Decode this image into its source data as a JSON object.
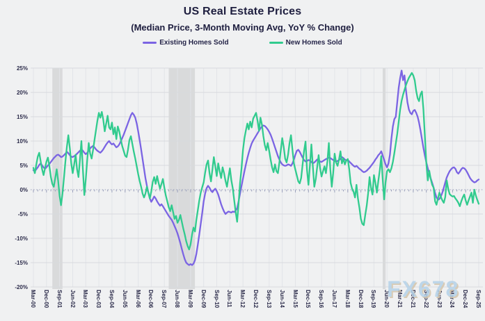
{
  "header": {
    "title": "US Real Estate Prices",
    "subtitle": "(Median Price, 3-Month Moving Avg, YoY % Change)"
  },
  "legend": {
    "items": [
      {
        "label": "Existing Homes Sold",
        "color": "#7b64e3"
      },
      {
        "label": "New Homes Sold",
        "color": "#31cb8e"
      }
    ]
  },
  "watermark": {
    "text": "FX678"
  },
  "chart_data": {
    "type": "line",
    "title": "US Real Estate Prices",
    "subtitle": "(Median Price, 3-Month Moving Avg, YoY % Change)",
    "x_start": "2000-03",
    "x_end": "2025-09",
    "x_interval": "monthly",
    "x_tick_every_months": 9,
    "x_tick_labels": [
      "Mar-00",
      "Dec-00",
      "Sep-01",
      "Jun-02",
      "Mar-03",
      "Dec-03",
      "Sep-04",
      "Jun-05",
      "Mar-06",
      "Dec-06",
      "Sep-07",
      "Jun-08",
      "Mar-09",
      "Dec-09",
      "Sep-10",
      "Jun-11",
      "Mar-12",
      "Dec-12",
      "Sep-13",
      "Jun-14",
      "Mar-15",
      "Dec-15",
      "Sep-16",
      "Jun-17",
      "Mar-18",
      "Dec-18",
      "Sep-19",
      "Jun-20",
      "Mar-21",
      "Dec-21",
      "Sep-22",
      "Jun-23",
      "Mar-24",
      "Dec-24",
      "Sep-25"
    ],
    "y_axis": {
      "unit": "%",
      "min": -20,
      "max": 25,
      "step": 5,
      "tick_values": [
        25,
        20,
        15,
        10,
        5,
        0,
        -5,
        -10,
        -15,
        -20
      ],
      "tick_labels": [
        "25%",
        "20%",
        "15%",
        "10%",
        "5%",
        "0%",
        "-5%",
        "-10%",
        "-15%",
        "-20%"
      ]
    },
    "grid": true,
    "legend_position": "top",
    "colors": {
      "recession_band": "#d9dadb"
    },
    "recession_shading_months": [
      {
        "from": 13,
        "to": 20
      },
      {
        "from": 93,
        "to": 111
      },
      {
        "from": 240,
        "to": 242
      }
    ],
    "series": [
      {
        "name": "Existing Homes Sold",
        "color": "#7b64e3",
        "values": [
          4.0,
          3.8,
          4.2,
          4.6,
          5.1,
          5.4,
          5.0,
          4.6,
          4.3,
          4.6,
          5.0,
          5.3,
          5.7,
          6.1,
          6.5,
          6.8,
          7.1,
          7.2,
          7.0,
          6.7,
          6.8,
          7.1,
          7.4,
          7.8,
          7.5,
          7.1,
          6.8,
          6.7,
          6.9,
          7.1,
          7.4,
          7.7,
          8.0,
          8.3,
          8.0,
          7.6,
          7.3,
          7.6,
          8.0,
          8.5,
          8.8,
          9.0,
          8.7,
          8.3,
          8.0,
          7.8,
          7.6,
          7.9,
          8.3,
          8.8,
          9.3,
          9.7,
          10.0,
          9.6,
          9.3,
          9.5,
          9.1,
          8.7,
          8.9,
          9.3,
          9.9,
          10.6,
          11.3,
          12.1,
          12.9,
          13.7,
          14.5,
          15.3,
          15.8,
          15.4,
          14.8,
          13.6,
          12.0,
          10.2,
          8.3,
          6.3,
          4.3,
          2.4,
          0.8,
          -0.6,
          -1.8,
          -2.5,
          -2.0,
          -1.4,
          -1.8,
          -2.4,
          -2.9,
          -3.3,
          -3.0,
          -3.4,
          -3.9,
          -4.4,
          -4.9,
          -5.4,
          -5.8,
          -6.2,
          -6.8,
          -7.5,
          -8.2,
          -9.0,
          -10.0,
          -11.0,
          -12.2,
          -13.3,
          -14.3,
          -15.0,
          -15.3,
          -15.5,
          -15.3,
          -15.5,
          -15.2,
          -14.5,
          -13.2,
          -11.3,
          -9.2,
          -7.0,
          -4.8,
          -2.4,
          -0.8,
          0.3,
          0.8,
          0.4,
          -0.2,
          -0.5,
          -0.1,
          0.2,
          -0.3,
          -1.0,
          -2.0,
          -3.0,
          -3.8,
          -4.5,
          -5.0,
          -4.7,
          -4.5,
          -4.6,
          -4.7,
          -4.5,
          -4.6,
          -4.3,
          -3.8,
          -2.4,
          -0.8,
          0.8,
          2.3,
          3.8,
          5.2,
          6.5,
          7.6,
          8.6,
          9.5,
          10.1,
          10.6,
          11.1,
          11.6,
          12.1,
          12.6,
          13.0,
          13.2,
          13.1,
          12.8,
          12.4,
          11.9,
          11.3,
          10.5,
          9.6,
          8.7,
          7.8,
          6.9,
          6.2,
          5.6,
          5.2,
          5.0,
          4.9,
          5.0,
          5.2,
          5.1,
          4.9,
          5.4,
          6.2,
          7.2,
          8.0,
          8.2,
          7.8,
          7.2,
          6.6,
          6.1,
          5.8,
          5.9,
          6.1,
          6.0,
          5.7,
          5.4,
          5.6,
          5.9,
          6.2,
          6.0,
          5.8,
          5.7,
          5.9,
          6.1,
          6.3,
          6.4,
          6.6,
          6.5,
          6.3,
          6.1,
          5.9,
          5.8,
          5.9,
          6.1,
          6.3,
          6.7,
          6.5,
          6.2,
          6.0,
          6.1,
          5.8,
          5.5,
          5.2,
          4.9,
          4.7,
          4.9,
          4.6,
          4.3,
          4.1,
          3.8,
          3.6,
          3.7,
          3.9,
          4.2,
          4.5,
          4.9,
          5.3,
          5.7,
          6.2,
          6.6,
          7.1,
          7.4,
          7.9,
          7.0,
          6.1,
          5.2,
          4.6,
          5.4,
          7.2,
          10.5,
          13.0,
          14.5,
          15.0,
          18.0,
          21.0,
          23.0,
          24.5,
          22.5,
          23.5,
          20.5,
          18.0,
          16.5,
          15.8,
          15.5,
          16.2,
          16.4,
          15.8,
          15.0,
          13.8,
          12.2,
          10.4,
          8.6,
          7.0,
          5.6,
          4.4,
          3.3,
          2.3,
          1.4,
          0.4,
          -0.7,
          -1.6,
          -2.1,
          -1.9,
          -1.4,
          -0.6,
          0.4,
          1.5,
          2.5,
          3.2,
          3.8,
          4.2,
          4.5,
          4.6,
          4.3,
          3.6,
          3.3,
          3.7,
          4.2,
          4.5,
          4.4,
          4.1,
          3.6,
          3.0,
          2.4,
          2.0,
          1.7,
          1.5,
          1.6,
          1.9,
          2.1
        ]
      },
      {
        "name": "New Homes Sold",
        "color": "#31cb8e",
        "values": [
          4.5,
          3.4,
          5.2,
          6.8,
          7.6,
          5.8,
          4.2,
          3.0,
          4.4,
          5.8,
          6.6,
          4.8,
          2.6,
          1.2,
          0.6,
          2.4,
          4.2,
          1.8,
          -1.2,
          -3.2,
          -0.8,
          2.4,
          5.8,
          8.8,
          11.2,
          8.6,
          5.4,
          3.4,
          5.2,
          7.2,
          4.2,
          2.6,
          6.2,
          10.0,
          4.2,
          -1.1,
          2.2,
          6.2,
          9.6,
          7.4,
          6.4,
          8.2,
          10.2,
          12.2,
          14.2,
          15.8,
          14.8,
          16.0,
          14.4,
          12.0,
          13.6,
          15.2,
          12.8,
          12.4,
          13.8,
          11.4,
          12.8,
          10.4,
          13.0,
          12.0,
          10.4,
          9.0,
          8.0,
          7.0,
          6.7,
          8.2,
          10.2,
          11.0,
          9.4,
          7.8,
          6.4,
          4.8,
          3.2,
          1.8,
          0.6,
          -0.8,
          -1.6,
          -0.8,
          0.6,
          -0.6,
          -1.8,
          -0.4,
          1.6,
          2.6,
          1.2,
          2.8,
          1.4,
          0.2,
          1.2,
          2.2,
          0.4,
          -1.2,
          -2.4,
          -3.6,
          -4.4,
          -3.2,
          -4.6,
          -6.0,
          -5.4,
          -6.8,
          -6.2,
          -5.2,
          -6.6,
          -8.0,
          -9.2,
          -10.6,
          -11.6,
          -12.3,
          -11.2,
          -9.2,
          -7.8,
          -8.6,
          -6.2,
          -4.2,
          -2.2,
          -0.6,
          0.5,
          1.5,
          3.5,
          5.2,
          6.0,
          3.4,
          1.7,
          4.2,
          6.7,
          4.8,
          2.8,
          5.4,
          3.8,
          2.4,
          4.6,
          3.4,
          1.8,
          0.6,
          2.6,
          4.4,
          2.0,
          0.3,
          -2.2,
          -4.6,
          -6.6,
          -2.8,
          1.4,
          4.4,
          8.2,
          10.6,
          12.2,
          13.6,
          12.4,
          14.0,
          12.8,
          14.6,
          15.2,
          15.8,
          14.2,
          12.1,
          14.8,
          13.4,
          11.0,
          9.2,
          8.1,
          9.6,
          8.0,
          6.2,
          4.6,
          3.6,
          5.2,
          3.8,
          3.4,
          5.6,
          8.2,
          10.6,
          8.8,
          6.4,
          5.6,
          7.2,
          9.6,
          11.2,
          8.2,
          5.4,
          4.1,
          2.9,
          1.7,
          1.3,
          2.4,
          5.2,
          8.0,
          9.9,
          4.0,
          1.0,
          5.0,
          9.3,
          4.8,
          0.6,
          2.2,
          4.6,
          7.1,
          4.4,
          2.7,
          3.8,
          4.8,
          3.4,
          5.8,
          9.6,
          4.2,
          0.6,
          3.4,
          7.4,
          5.6,
          4.9,
          6.2,
          7.9,
          5.4,
          6.4,
          5.2,
          6.0,
          6.3,
          4.2,
          1.4,
          0.2,
          -0.4,
          -1.6,
          1.0,
          -1.8,
          -3.7,
          -6.0,
          -7.0,
          -7.3,
          -5.2,
          -3.3,
          -0.8,
          2.6,
          0.4,
          -1.0,
          3.0,
          1.4,
          -0.6,
          1.8,
          4.0,
          6.9,
          2.1,
          -2.0,
          1.5,
          3.8,
          4.2,
          3.6,
          4.4,
          5.7,
          7.5,
          9.5,
          11.5,
          14.0,
          16.5,
          18.3,
          19.5,
          20.5,
          21.5,
          22.3,
          23.0,
          23.5,
          24.0,
          23.5,
          22.5,
          20.3,
          18.8,
          18.2,
          19.6,
          20.2,
          16.5,
          11.0,
          5.4,
          1.9,
          3.9,
          2.2,
          1.0,
          0.4,
          -2.4,
          -3.1,
          -1.8,
          -0.6,
          -1.5,
          -2.2,
          -2.7,
          -1.5,
          1.9,
          0.2,
          -0.9,
          -1.2,
          -1.4,
          -1.3,
          -1.8,
          -2.2,
          -2.7,
          -3.4,
          -2.4,
          -1.6,
          -1.0,
          -2.2,
          -3.1,
          -2.2,
          -1.4,
          -0.6,
          -2.7,
          0.0,
          -1.2,
          -2.1,
          -2.9
        ]
      }
    ]
  }
}
